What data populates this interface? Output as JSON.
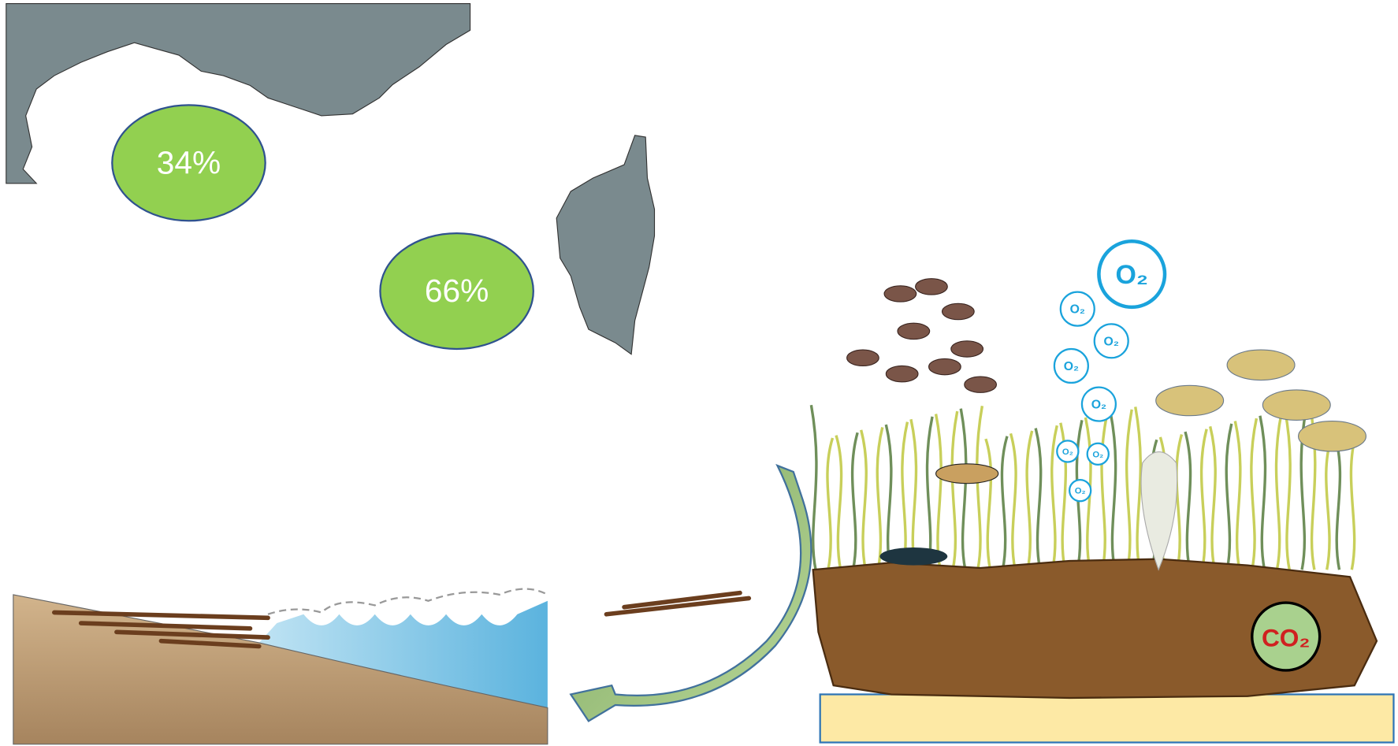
{
  "map": {
    "labels": [
      "34%",
      "66%"
    ]
  },
  "meadow": {
    "oxygen_bubbles": [
      "O₂",
      "O₂",
      "O₂",
      "O₂",
      "O₂",
      "O₂",
      "O₂",
      "O₂"
    ],
    "carbon_label": "CO₂"
  }
}
